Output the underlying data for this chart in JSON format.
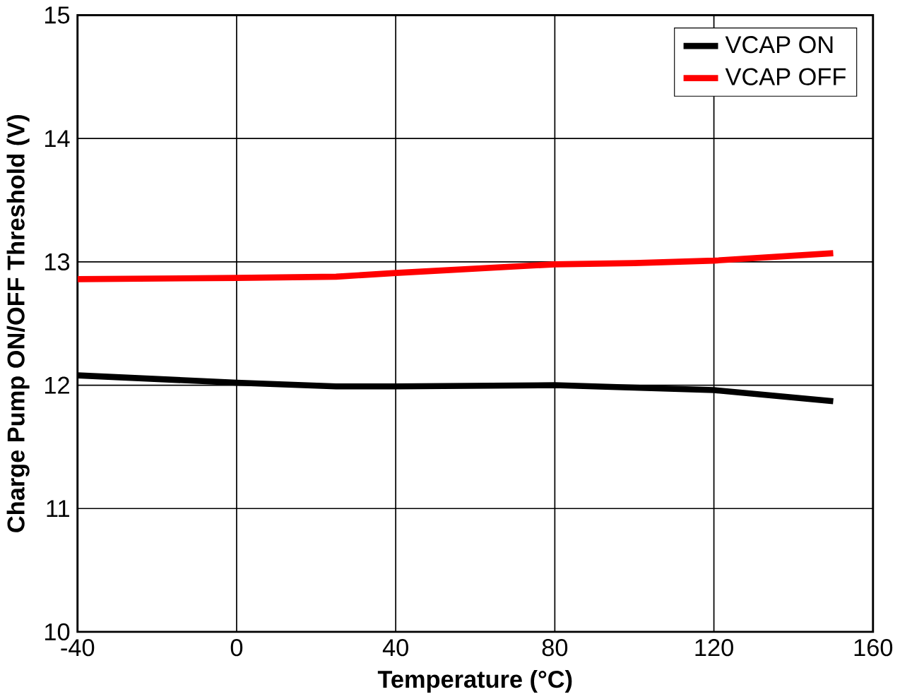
{
  "chart_data": {
    "type": "line",
    "xlabel": "Temperature (°C)",
    "ylabel": "Charge Pump ON/OFF Threshold (V)",
    "xlim": [
      -40,
      160
    ],
    "ylim": [
      10,
      15
    ],
    "xticks": [
      -40,
      0,
      40,
      80,
      120,
      160
    ],
    "yticks": [
      10,
      11,
      12,
      13,
      14,
      15
    ],
    "grid": true,
    "legend": "top right",
    "series": [
      {
        "name": "VCAP ON",
        "color": "#000000",
        "x": [
          -40,
          0,
          25,
          40,
          80,
          100,
          120,
          150
        ],
        "values": [
          12.08,
          12.02,
          11.99,
          11.99,
          12.0,
          11.98,
          11.96,
          11.87
        ]
      },
      {
        "name": "VCAP OFF",
        "color": "#ff0000",
        "x": [
          -40,
          0,
          25,
          40,
          80,
          100,
          120,
          150
        ],
        "values": [
          12.86,
          12.87,
          12.88,
          12.91,
          12.98,
          12.99,
          13.01,
          13.07
        ]
      }
    ]
  }
}
